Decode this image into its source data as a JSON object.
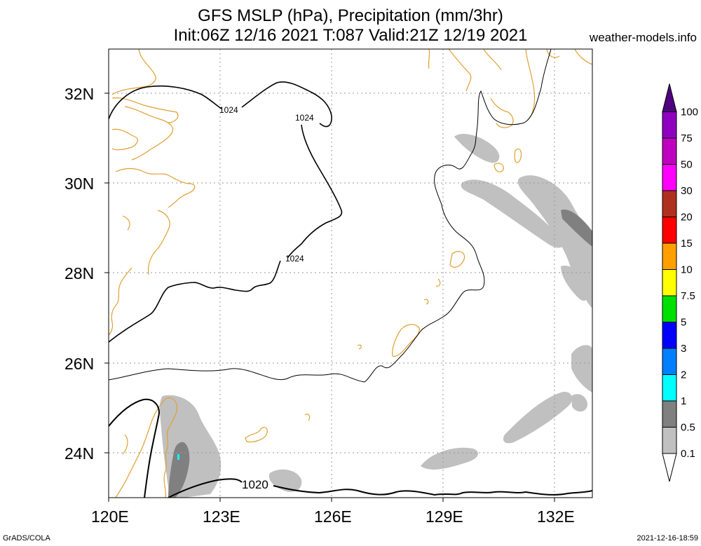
{
  "title_line1": "GFS MSLP (hPa), Precipitation (mm/3hr)",
  "title_line2": "Init:06Z 12/16 2021 T:087 Valid:21Z 12/19 2021",
  "credit": "weather-models.info",
  "footer_left": "GrADS/COLA",
  "footer_right": "2021-12-16-18:59",
  "lat_labels": [
    "32N",
    "30N",
    "28N",
    "26N",
    "24N"
  ],
  "lon_labels": [
    "120E",
    "123E",
    "126E",
    "129E",
    "132E"
  ],
  "isobar_labels": [
    "1024",
    "1024",
    "1024",
    "1020"
  ],
  "colorbar": {
    "labels": [
      "0.1",
      "0.5",
      "1",
      "2",
      "3",
      "5",
      "7.5",
      "10",
      "15",
      "20",
      "30",
      "50",
      "75",
      "100"
    ],
    "colors": [
      "#c0c0c0",
      "#808080",
      "#00ffff",
      "#0080ff",
      "#0000ff",
      "#00e000",
      "#ffff00",
      "#ffa000",
      "#ff0000",
      "#b03020",
      "#ff00ff",
      "#c000c0",
      "#9000c0",
      "#500080"
    ]
  },
  "colors": {
    "coast": "#e0a030",
    "isobar": "#000000",
    "grid": "#999999"
  }
}
